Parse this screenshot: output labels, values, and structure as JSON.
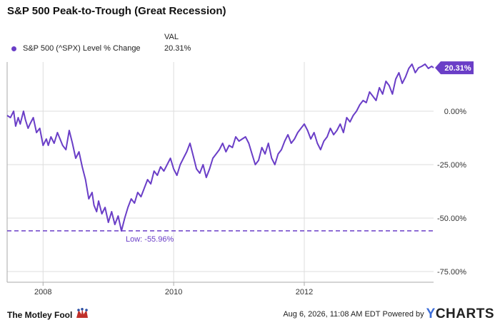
{
  "header": {
    "title": "S&P 500 Peak-to-Trough (Great Recession)"
  },
  "legend": {
    "column_header": "VAL",
    "items": [
      {
        "label": "S&P 500 (^SPX) Level % Change",
        "value": "20.31%"
      }
    ]
  },
  "colors": {
    "series": "#6a3ec7",
    "grid": "#dddddd",
    "axis": "#aaaaaa",
    "text": "#333333"
  },
  "chart_data": {
    "type": "line",
    "title": "S&P 500 Peak-to-Trough (Great Recession)",
    "xlabel": "",
    "ylabel": "",
    "x_tick_labels": [
      "2008",
      "2010",
      "2012"
    ],
    "x_tick_values": [
      2008.0,
      2010.0,
      2012.0
    ],
    "y_tick_labels": [
      "0.00%",
      "-25.00%",
      "-50.00%",
      "-75.00%"
    ],
    "y_tick_values": [
      0,
      -25,
      -50,
      -75
    ],
    "xlim": [
      2007.45,
      2013.98
    ],
    "ylim": [
      -80,
      23
    ],
    "grid": true,
    "legend_position": "top-left",
    "series": [
      {
        "name": "S&P 500 (^SPX) Level % Change",
        "x": [
          2007.45,
          2007.5,
          2007.55,
          2007.58,
          2007.62,
          2007.65,
          2007.7,
          2007.73,
          2007.77,
          2007.8,
          2007.85,
          2007.9,
          2007.95,
          2008.0,
          2008.05,
          2008.08,
          2008.12,
          2008.17,
          2008.22,
          2008.3,
          2008.35,
          2008.4,
          2008.45,
          2008.5,
          2008.55,
          2008.6,
          2008.65,
          2008.7,
          2008.75,
          2008.78,
          2008.82,
          2008.85,
          2008.9,
          2008.95,
          2009.0,
          2009.05,
          2009.1,
          2009.15,
          2009.2,
          2009.25,
          2009.3,
          2009.35,
          2009.4,
          2009.45,
          2009.5,
          2009.55,
          2009.6,
          2009.65,
          2009.7,
          2009.75,
          2009.8,
          2009.85,
          2009.9,
          2009.95,
          2010.0,
          2010.05,
          2010.1,
          2010.15,
          2010.2,
          2010.25,
          2010.3,
          2010.35,
          2010.4,
          2010.45,
          2010.5,
          2010.55,
          2010.6,
          2010.65,
          2010.7,
          2010.75,
          2010.8,
          2010.85,
          2010.9,
          2010.95,
          2011.0,
          2011.05,
          2011.1,
          2011.15,
          2011.2,
          2011.25,
          2011.3,
          2011.35,
          2011.4,
          2011.45,
          2011.5,
          2011.55,
          2011.6,
          2011.65,
          2011.7,
          2011.75,
          2011.8,
          2011.85,
          2011.9,
          2011.95,
          2012.0,
          2012.05,
          2012.1,
          2012.15,
          2012.2,
          2012.25,
          2012.3,
          2012.35,
          2012.4,
          2012.45,
          2012.5,
          2012.55,
          2012.6,
          2012.65,
          2012.7,
          2012.75,
          2012.8,
          2012.85,
          2012.9,
          2012.95,
          2013.0,
          2013.05,
          2013.1,
          2013.15,
          2013.2,
          2013.25,
          2013.3,
          2013.35,
          2013.4,
          2013.45,
          2013.5,
          2013.55,
          2013.6,
          2013.65,
          2013.7,
          2013.75,
          2013.8,
          2013.85,
          2013.9,
          2013.95,
          2013.98
        ],
        "y": [
          -2,
          -3,
          0,
          -7,
          -3,
          -6,
          0,
          -4,
          -8,
          -6,
          -3,
          -10,
          -8,
          -16,
          -13,
          -16,
          -12,
          -15,
          -10,
          -16,
          -18,
          -9,
          -15,
          -22,
          -19,
          -26,
          -32,
          -41,
          -38,
          -44,
          -47,
          -42,
          -48,
          -45,
          -52,
          -47,
          -53,
          -49,
          -56,
          -50,
          -45,
          -41,
          -43,
          -38,
          -40,
          -36,
          -32,
          -34,
          -28,
          -30,
          -26,
          -28,
          -25,
          -22,
          -27,
          -30,
          -25,
          -22,
          -19,
          -15,
          -21,
          -27,
          -29,
          -25,
          -31,
          -27,
          -22,
          -20,
          -18,
          -15,
          -19,
          -16,
          -17,
          -12,
          -14,
          -13,
          -12,
          -15,
          -20,
          -25,
          -23,
          -17,
          -20,
          -15,
          -22,
          -25,
          -20,
          -18,
          -14,
          -11,
          -15,
          -13,
          -10,
          -8,
          -6,
          -9,
          -13,
          -10,
          -15,
          -18,
          -14,
          -12,
          -8,
          -11,
          -9,
          -6,
          -10,
          -3,
          -5,
          -2,
          0,
          3,
          5,
          4,
          9,
          7,
          5,
          11,
          8,
          14,
          12,
          8,
          15,
          18,
          13,
          16,
          20,
          22,
          18,
          20.31,
          21,
          22,
          20,
          21,
          20.31
        ]
      }
    ],
    "annotations": [
      {
        "type": "hline",
        "y": -55.96,
        "label": "Low: -55.96%"
      },
      {
        "type": "end-value",
        "label": "20.31%"
      }
    ]
  },
  "footer": {
    "brand_left": "The Motley Fool",
    "timestamp": "Aug 6, 2026, 11:08 AM EDT",
    "powered_by": "Powered by",
    "brand_right_y": "Y",
    "brand_right_rest": "CHARTS"
  }
}
